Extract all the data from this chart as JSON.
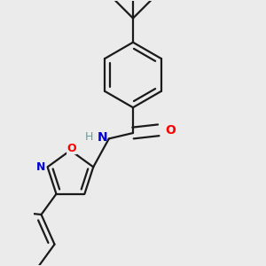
{
  "bg_color": "#ebebeb",
  "bond_color": "#1a1a1a",
  "bond_width": 1.6,
  "N_color": "#0000cd",
  "O_color": "#ff0000",
  "H_color": "#5f9ea0",
  "font_size": 10,
  "fig_size": [
    3.0,
    3.0
  ],
  "dpi": 100,
  "xlim": [
    0.15,
    0.85
  ],
  "ylim": [
    0.05,
    0.98
  ]
}
